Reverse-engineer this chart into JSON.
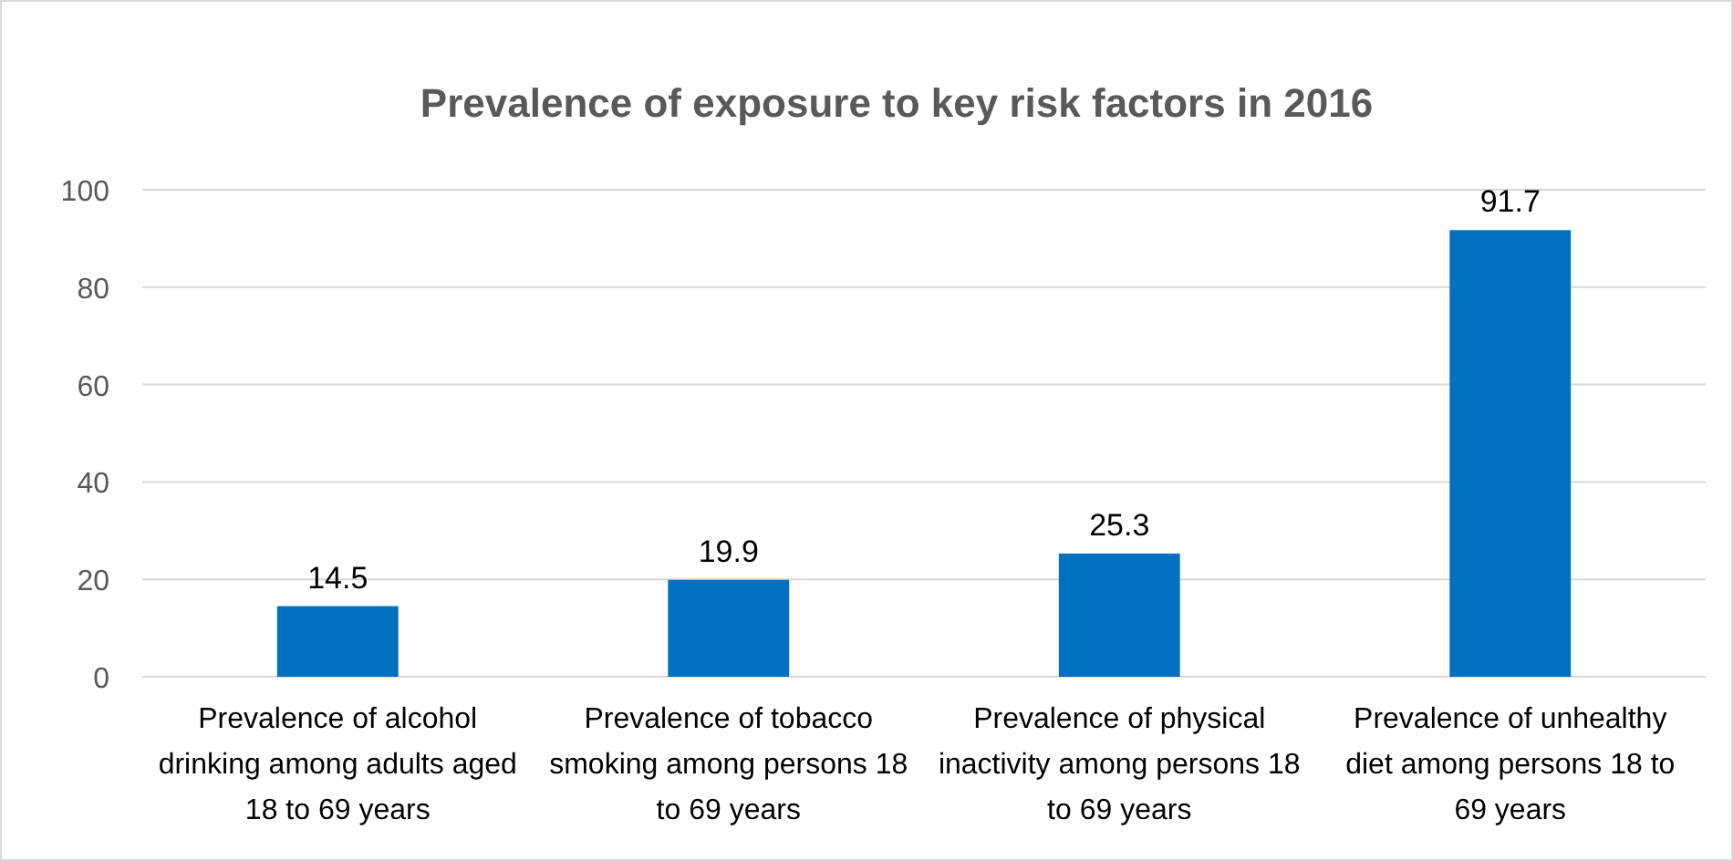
{
  "chart_data": {
    "type": "bar",
    "title": "Prevalence of exposure to key risk factors in 2016",
    "categories": [
      "Prevalence of alcohol drinking among adults aged 18 to 69 years",
      "Prevalence of tobacco smoking among persons 18 to 69 years",
      "Prevalence of physical inactivity among persons 18 to 69 years",
      "Prevalence of unhealthy diet among persons 18 to 69 years"
    ],
    "values": [
      14.5,
      19.9,
      25.3,
      91.7
    ],
    "color": "#0070c0",
    "ylim": [
      0,
      100
    ],
    "yticks": [
      0,
      20,
      40,
      60,
      80,
      100
    ],
    "grid": "y",
    "data_labels": true
  }
}
